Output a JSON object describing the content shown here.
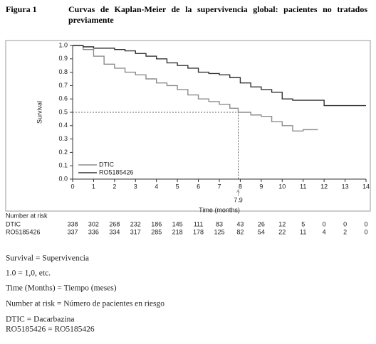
{
  "header": {
    "figure": "Figura 1",
    "title": "Curvas de Kaplan-Meier de la supervivencia global: pacientes no tratados previamente"
  },
  "chart_data": {
    "type": "step",
    "xlabel": "Time (months)",
    "ylabel": "Survival",
    "xlim": [
      0,
      14
    ],
    "ylim": [
      0,
      1
    ],
    "xticks": [
      0,
      1,
      2,
      3,
      4,
      5,
      6,
      7,
      8,
      9,
      10,
      11,
      12,
      13,
      14
    ],
    "yticks": [
      {
        "value": 0,
        "label": "0.0"
      },
      0.1,
      0.2,
      0.3,
      0.4,
      0.5,
      0.6,
      0.7,
      0.8,
      0.9,
      {
        "value": 1,
        "label": "1.0"
      }
    ],
    "legend": "lower left",
    "series": [
      {
        "name": "DTIC",
        "color": "#8c8c8c",
        "x": [
          0,
          0.5,
          1,
          1.5,
          2,
          2.5,
          3,
          3.5,
          4,
          4.5,
          5,
          5.5,
          6,
          6.5,
          7,
          7.5,
          7.9,
          8.5,
          9,
          9.5,
          10,
          10.5,
          11,
          11.7
        ],
        "values": [
          1,
          0.97,
          0.92,
          0.86,
          0.83,
          0.8,
          0.78,
          0.75,
          0.72,
          0.7,
          0.67,
          0.63,
          0.6,
          0.58,
          0.56,
          0.53,
          0.5,
          0.48,
          0.47,
          0.43,
          0.4,
          0.36,
          0.37,
          0.37
        ]
      },
      {
        "name": "RO5185426",
        "color": "#333333",
        "x": [
          0,
          0.5,
          1,
          2,
          2.5,
          3,
          3.5,
          4,
          4.5,
          5,
          5.5,
          6,
          6.5,
          7,
          7.5,
          8,
          8.5,
          9,
          9.5,
          10,
          10.5,
          12,
          14
        ],
        "values": [
          1,
          0.99,
          0.98,
          0.97,
          0.96,
          0.94,
          0.92,
          0.9,
          0.87,
          0.85,
          0.83,
          0.8,
          0.79,
          0.78,
          0.76,
          0.72,
          0.69,
          0.67,
          0.65,
          0.6,
          0.59,
          0.55,
          0.55
        ]
      }
    ],
    "median": {
      "x": 7.9,
      "y": 0.5
    },
    "number_at_risk": {
      "title": "Number at risk",
      "rows": [
        {
          "name": "DTIC",
          "values": [
            338,
            302,
            268,
            232,
            186,
            145,
            111,
            83,
            43,
            26,
            12,
            5,
            0,
            0,
            0
          ]
        },
        {
          "name": "RO5185426",
          "values": [
            337,
            336,
            334,
            317,
            285,
            218,
            178,
            125,
            82,
            54,
            22,
            11,
            4,
            2,
            0
          ]
        }
      ]
    }
  },
  "notes": [
    "Survival = Supervivencia",
    "1.0 = 1,0, etc.",
    "Time (Months) = Tiempo (meses)",
    "Number at risk = Número de pacientes en riesgo",
    "DTIC = Dacarbazina",
    "RO5185426 = RO5185426"
  ]
}
